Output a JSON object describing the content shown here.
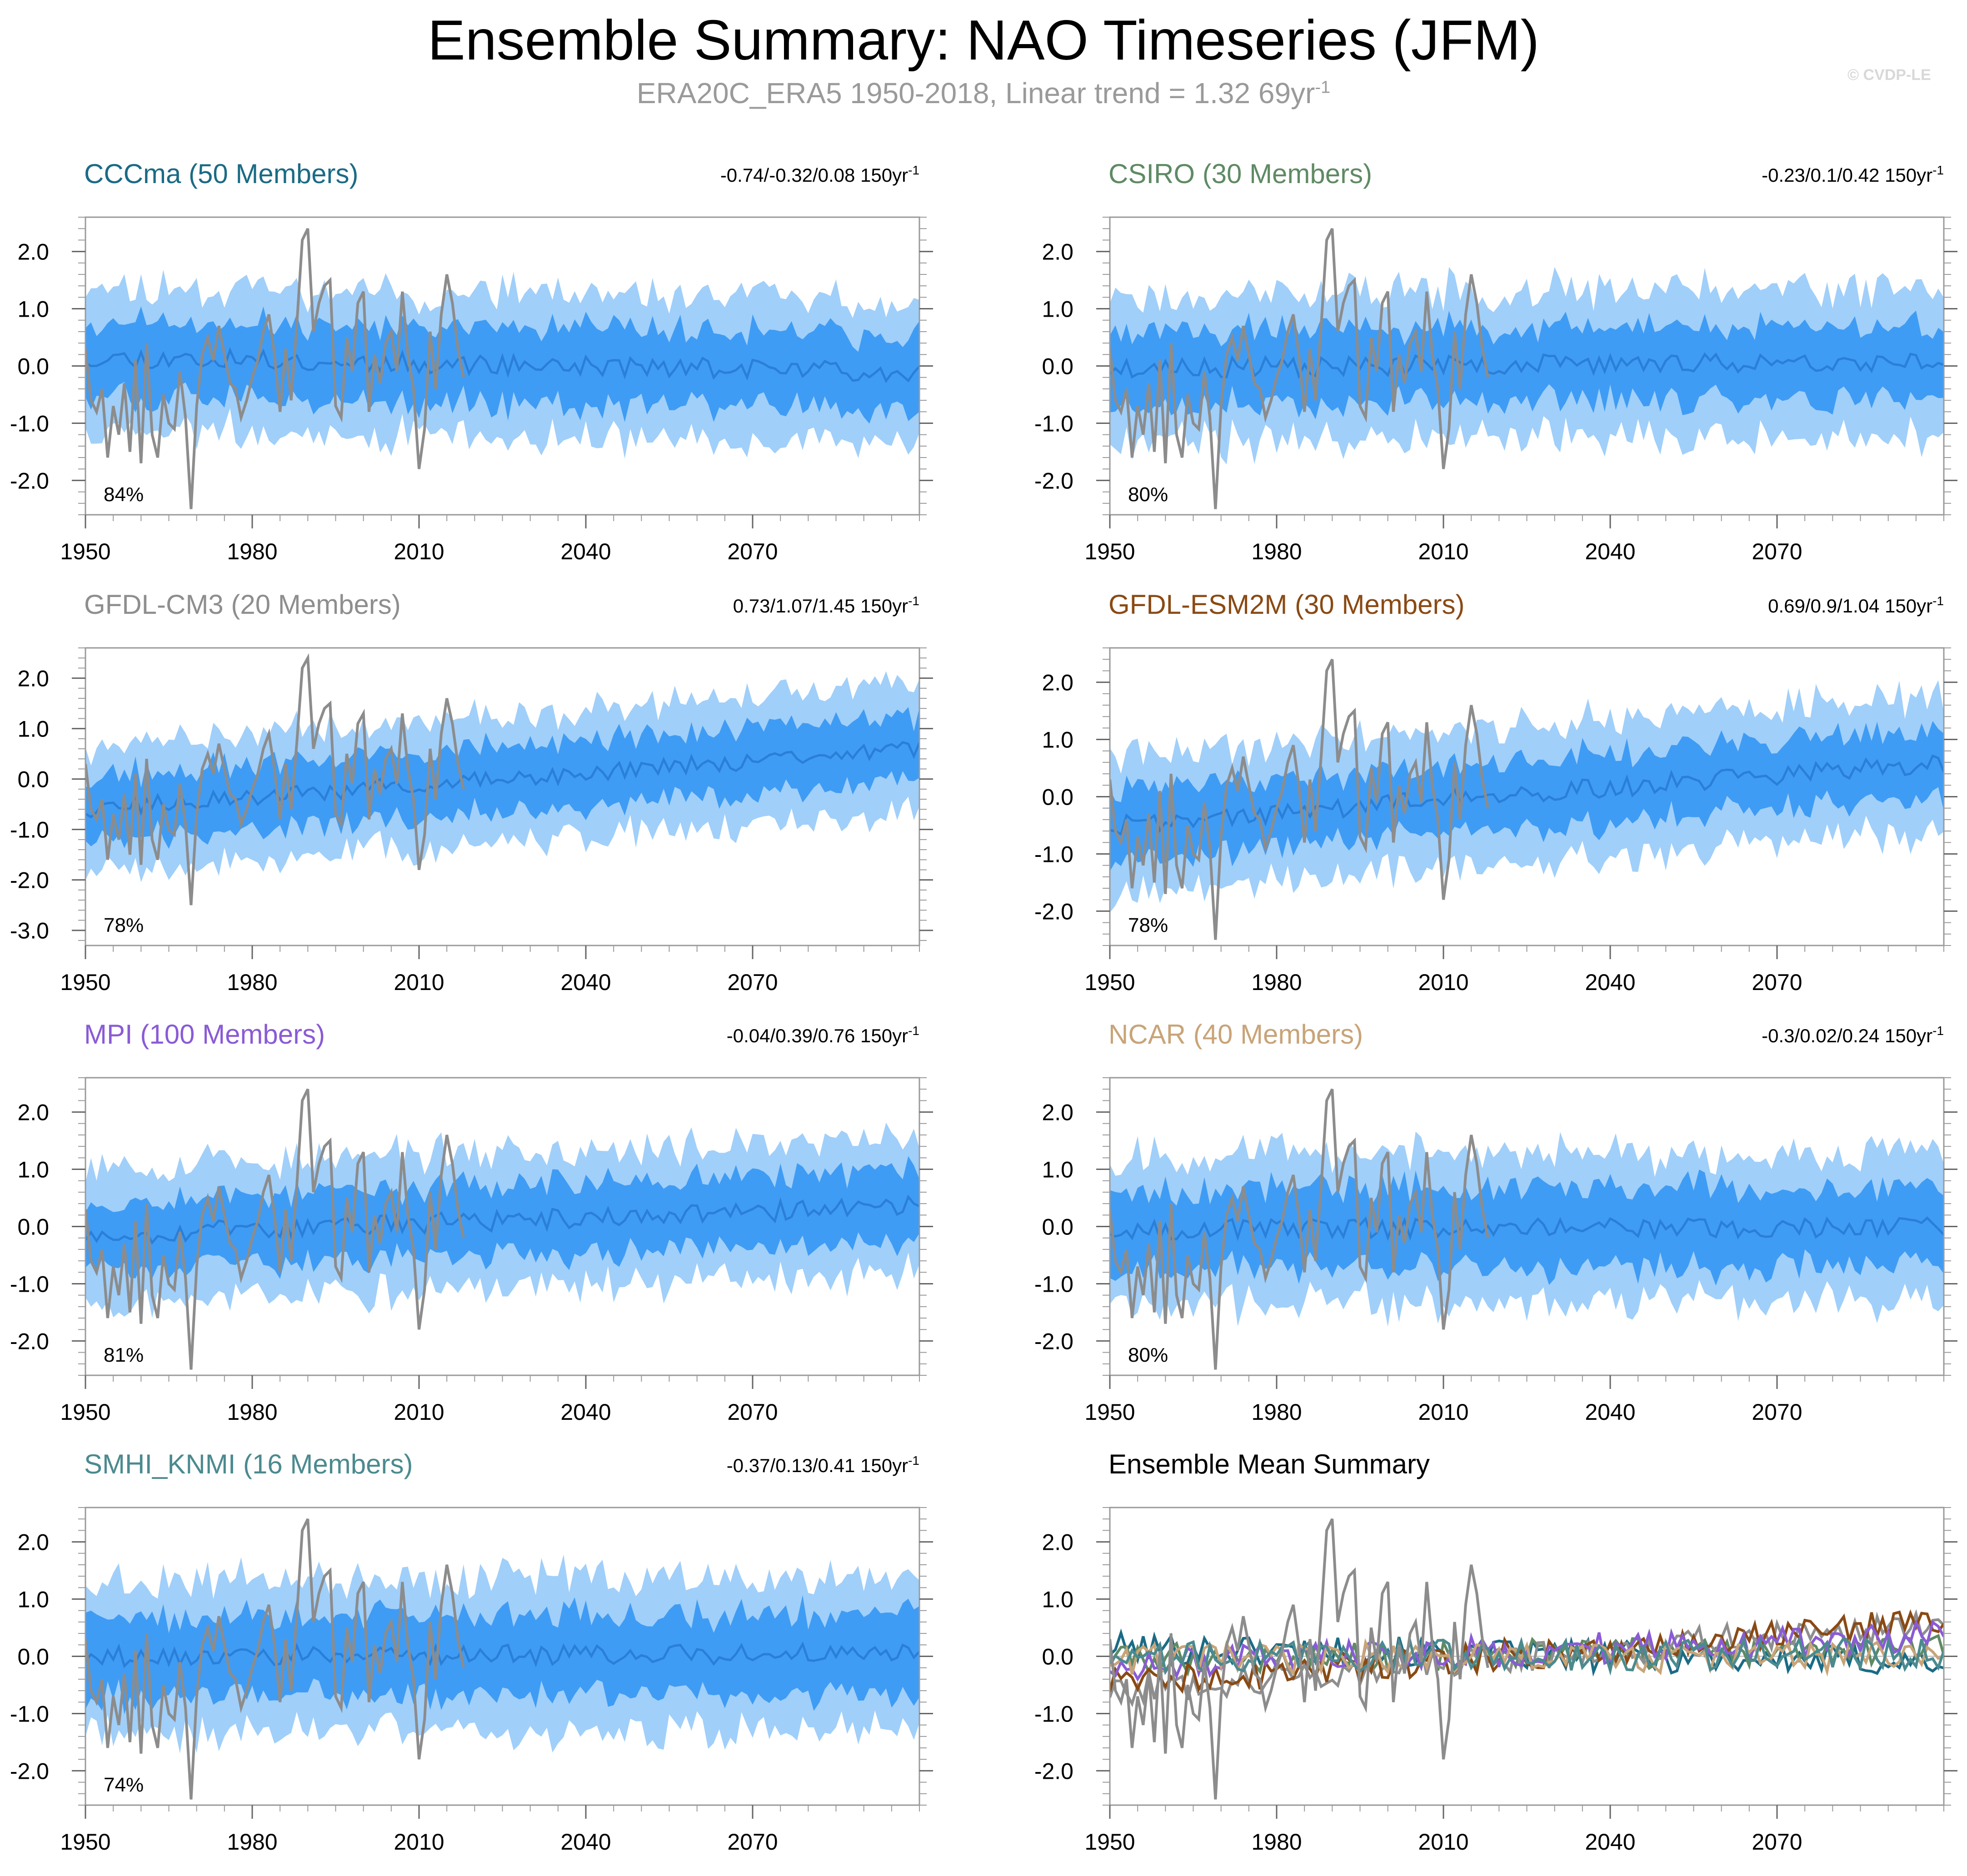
{
  "header": {
    "title": "Ensemble Summary: NAO Timeseries (JFM)",
    "subtitle": "ERA20C_ERA5 1950-2018, Linear trend = 1.32 69yr",
    "subtitle_sup": "-1",
    "credit": "© CVDP-LE"
  },
  "chart_data": [
    {
      "type": "line",
      "id": "cccma",
      "title": "CCCma (50 Members)",
      "title_color": "#1b6b85",
      "stat": "-0.74/-0.32/0.08 150yr",
      "stat_sup": "-1",
      "percent": "84%",
      "x_range": [
        1950,
        2100
      ],
      "ylim": [
        -2.6,
        2.6
      ],
      "yticks": [
        "2.0",
        "1.0",
        "0.0",
        "-1.0",
        "-2.0"
      ],
      "ytick_values": [
        2,
        1,
        0,
        -1,
        -2
      ],
      "xticks": [
        "1950",
        "1980",
        "2010",
        "2040",
        "2070"
      ],
      "xtick_values": [
        1950,
        1980,
        2010,
        2040,
        2070
      ],
      "trend_start": 0.15,
      "trend_end": -0.1,
      "spread_outer": 1.25,
      "spread_inner": 0.65,
      "seed": 11,
      "series": [
        {
          "name": "Ensemble 10-90% spread",
          "color": "#a0cffa"
        },
        {
          "name": "Ensemble 25-75% spread",
          "color": "#3f9cf4"
        },
        {
          "name": "Ensemble mean",
          "color": "#2a7fd8"
        },
        {
          "name": "ERA20C_ERA5",
          "color": "#8c8c8c"
        }
      ]
    },
    {
      "type": "line",
      "id": "csiro",
      "title": "CSIRO (30 Members)",
      "title_color": "#5f8a64",
      "stat": "-0.23/0.1/0.42 150yr",
      "stat_sup": "-1",
      "percent": "80%",
      "x_range": [
        1950,
        2100
      ],
      "ylim": [
        -2.6,
        2.6
      ],
      "yticks": [
        "2.0",
        "1.0",
        "0.0",
        "-1.0",
        "-2.0"
      ],
      "ytick_values": [
        2,
        1,
        0,
        -1,
        -2
      ],
      "xticks": [
        "1950",
        "1980",
        "2010",
        "2040",
        "2070"
      ],
      "xtick_values": [
        1950,
        1980,
        2010,
        2040,
        2070
      ],
      "trend_start": -0.05,
      "trend_end": 0.1,
      "spread_outer": 1.3,
      "spread_inner": 0.65,
      "seed": 23,
      "series": [
        {
          "name": "Ensemble 10-90% spread",
          "color": "#a0cffa"
        },
        {
          "name": "Ensemble 25-75% spread",
          "color": "#3f9cf4"
        },
        {
          "name": "Ensemble mean",
          "color": "#2a7fd8"
        },
        {
          "name": "ERA20C_ERA5",
          "color": "#8c8c8c"
        }
      ]
    },
    {
      "type": "line",
      "id": "gfdl-cm3",
      "title": "GFDL-CM3 (20 Members)",
      "title_color": "#8e8e8e",
      "stat": "0.73/1.07/1.45 150yr",
      "stat_sup": "-1",
      "percent": "78%",
      "x_range": [
        1950,
        2100
      ],
      "ylim": [
        -3.3,
        2.6
      ],
      "yticks": [
        "2.0",
        "1.0",
        "0.0",
        "-1.0",
        "-2.0",
        "-3.0"
      ],
      "ytick_values": [
        2,
        1,
        0,
        -1,
        -2,
        -3
      ],
      "xticks": [
        "1950",
        "1980",
        "2010",
        "2040",
        "2070"
      ],
      "xtick_values": [
        1950,
        1980,
        2010,
        2040,
        2070
      ],
      "trend_start": -0.6,
      "trend_end": 0.6,
      "spread_outer": 1.25,
      "spread_inner": 0.65,
      "seed": 37,
      "series": [
        {
          "name": "Ensemble 10-90% spread",
          "color": "#a0cffa"
        },
        {
          "name": "Ensemble 25-75% spread",
          "color": "#3f9cf4"
        },
        {
          "name": "Ensemble mean",
          "color": "#2a7fd8"
        },
        {
          "name": "ERA20C_ERA5",
          "color": "#8c8c8c"
        }
      ]
    },
    {
      "type": "line",
      "id": "gfdl-esm2m",
      "title": "GFDL-ESM2M (30 Members)",
      "title_color": "#8a4a14",
      "stat": "0.69/0.9/1.04 150yr",
      "stat_sup": "-1",
      "percent": "78%",
      "x_range": [
        1950,
        2100
      ],
      "ylim": [
        -2.6,
        2.6
      ],
      "yticks": [
        "2.0",
        "1.0",
        "0.0",
        "-1.0",
        "-2.0"
      ],
      "ytick_values": [
        2,
        1,
        0,
        -1,
        -2
      ],
      "xticks": [
        "1950",
        "1980",
        "2010",
        "2040",
        "2070"
      ],
      "xtick_values": [
        1950,
        1980,
        2010,
        2040,
        2070
      ],
      "trend_start": -0.5,
      "trend_end": 0.6,
      "spread_outer": 1.2,
      "spread_inner": 0.6,
      "seed": 41,
      "series": [
        {
          "name": "Ensemble 10-90% spread",
          "color": "#a0cffa"
        },
        {
          "name": "Ensemble 25-75% spread",
          "color": "#3f9cf4"
        },
        {
          "name": "Ensemble mean",
          "color": "#2a7fd8"
        },
        {
          "name": "ERA20C_ERA5",
          "color": "#8c8c8c"
        }
      ]
    },
    {
      "type": "line",
      "id": "mpi",
      "title": "MPI (100 Members)",
      "title_color": "#8a5bd6",
      "stat": "-0.04/0.39/0.76 150yr",
      "stat_sup": "-1",
      "percent": "81%",
      "x_range": [
        1950,
        2100
      ],
      "ylim": [
        -2.6,
        2.6
      ],
      "yticks": [
        "2.0",
        "1.0",
        "0.0",
        "-1.0",
        "-2.0"
      ],
      "ytick_values": [
        2,
        1,
        0,
        -1,
        -2
      ],
      "xticks": [
        "1950",
        "1980",
        "2010",
        "2040",
        "2070"
      ],
      "xtick_values": [
        1950,
        1980,
        2010,
        2040,
        2070
      ],
      "trend_start": -0.15,
      "trend_end": 0.35,
      "spread_outer": 1.2,
      "spread_inner": 0.6,
      "seed": 53,
      "series": [
        {
          "name": "Ensemble 10-90% spread",
          "color": "#a0cffa"
        },
        {
          "name": "Ensemble 25-75% spread",
          "color": "#3f9cf4"
        },
        {
          "name": "Ensemble mean",
          "color": "#2a7fd8"
        },
        {
          "name": "ERA20C_ERA5",
          "color": "#8c8c8c"
        }
      ]
    },
    {
      "type": "line",
      "id": "ncar",
      "title": "NCAR (40 Members)",
      "title_color": "#c8a478",
      "stat": "-0.3/0.02/0.24 150yr",
      "stat_sup": "-1",
      "percent": "80%",
      "x_range": [
        1950,
        2100
      ],
      "ylim": [
        -2.6,
        2.6
      ],
      "yticks": [
        "2.0",
        "1.0",
        "0.0",
        "-1.0",
        "-2.0"
      ],
      "ytick_values": [
        2,
        1,
        0,
        -1,
        -2
      ],
      "xticks": [
        "1950",
        "1980",
        "2010",
        "2040",
        "2070"
      ],
      "xtick_values": [
        1950,
        1980,
        2010,
        2040,
        2070
      ],
      "trend_start": -0.05,
      "trend_end": 0.0,
      "spread_outer": 1.3,
      "spread_inner": 0.7,
      "seed": 67,
      "series": [
        {
          "name": "Ensemble 10-90% spread",
          "color": "#a0cffa"
        },
        {
          "name": "Ensemble 25-75% spread",
          "color": "#3f9cf4"
        },
        {
          "name": "Ensemble mean",
          "color": "#2a7fd8"
        },
        {
          "name": "ERA20C_ERA5",
          "color": "#8c8c8c"
        }
      ]
    },
    {
      "type": "line",
      "id": "smhi-knmi",
      "title": "SMHI_KNMI (16 Members)",
      "title_color": "#4b8a8f",
      "stat": "-0.37/0.13/0.41 150yr",
      "stat_sup": "-1",
      "percent": "74%",
      "x_range": [
        1950,
        2100
      ],
      "ylim": [
        -2.6,
        2.6
      ],
      "yticks": [
        "2.0",
        "1.0",
        "0.0",
        "-1.0",
        "-2.0"
      ],
      "ytick_values": [
        2,
        1,
        0,
        -1,
        -2
      ],
      "xticks": [
        "1950",
        "1980",
        "2010",
        "2040",
        "2070"
      ],
      "xtick_values": [
        1950,
        1980,
        2010,
        2040,
        2070
      ],
      "trend_start": 0.0,
      "trend_end": 0.05,
      "spread_outer": 1.35,
      "spread_inner": 0.7,
      "seed": 79,
      "series": [
        {
          "name": "Ensemble 10-90% spread",
          "color": "#a0cffa"
        },
        {
          "name": "Ensemble 25-75% spread",
          "color": "#3f9cf4"
        },
        {
          "name": "Ensemble mean",
          "color": "#2a7fd8"
        },
        {
          "name": "ERA20C_ERA5",
          "color": "#8c8c8c"
        }
      ]
    },
    {
      "type": "line",
      "id": "summary",
      "title": "Ensemble Mean Summary",
      "title_color": "#000000",
      "stat": "",
      "stat_sup": "",
      "percent": "",
      "x_range": [
        1950,
        2100
      ],
      "ylim": [
        -2.6,
        2.6
      ],
      "yticks": [
        "2.0",
        "1.0",
        "0.0",
        "-1.0",
        "-2.0"
      ],
      "ytick_values": [
        2,
        1,
        0,
        -1,
        -2
      ],
      "xticks": [
        "1950",
        "1980",
        "2010",
        "2040",
        "2070"
      ],
      "xtick_values": [
        1950,
        1980,
        2010,
        2040,
        2070
      ],
      "series": [
        {
          "name": "ERA20C_ERA5",
          "color": "#8c8c8c"
        },
        {
          "name": "CCCma",
          "color": "#1b6b85",
          "trend_start": 0.15,
          "trend_end": -0.1
        },
        {
          "name": "CSIRO",
          "color": "#5f8a64",
          "trend_start": -0.05,
          "trend_end": 0.1
        },
        {
          "name": "GFDL-CM3",
          "color": "#8e8e8e",
          "trend_start": -0.6,
          "trend_end": 0.6
        },
        {
          "name": "GFDL-ESM2M",
          "color": "#8a4a14",
          "trend_start": -0.5,
          "trend_end": 0.6
        },
        {
          "name": "MPI",
          "color": "#8a5bd6",
          "trend_start": -0.15,
          "trend_end": 0.35
        },
        {
          "name": "NCAR",
          "color": "#c8a478",
          "trend_start": -0.05,
          "trend_end": 0.0
        },
        {
          "name": "SMHI_KNMI",
          "color": "#4b8a8f",
          "trend_start": 0.0,
          "trend_end": 0.05
        }
      ]
    }
  ],
  "observations": {
    "name": "ERA20C_ERA5",
    "years": [
      1950,
      1951,
      1952,
      1953,
      1954,
      1955,
      1956,
      1957,
      1958,
      1959,
      1960,
      1961,
      1962,
      1963,
      1964,
      1965,
      1966,
      1967,
      1968,
      1969,
      1970,
      1971,
      1972,
      1973,
      1974,
      1975,
      1976,
      1977,
      1978,
      1979,
      1980,
      1981,
      1982,
      1983,
      1984,
      1985,
      1986,
      1987,
      1988,
      1989,
      1990,
      1991,
      1992,
      1993,
      1994,
      1995,
      1996,
      1997,
      1998,
      1999,
      2000,
      2001,
      2002,
      2003,
      2004,
      2005,
      2006,
      2007,
      2008,
      2009,
      2010,
      2011,
      2012,
      2013,
      2014,
      2015,
      2016,
      2017,
      2018
    ],
    "values": [
      0.3,
      -0.6,
      -0.8,
      -0.4,
      -1.6,
      -0.7,
      -1.2,
      -0.3,
      -1.5,
      0.1,
      -1.7,
      0.4,
      -1.2,
      -1.6,
      -0.5,
      -1.0,
      -1.1,
      -0.1,
      -0.9,
      -2.5,
      -0.7,
      0.2,
      0.5,
      0.1,
      0.7,
      0.2,
      -0.3,
      -0.4,
      -0.9,
      -0.6,
      -0.2,
      0.1,
      0.6,
      0.9,
      0.2,
      -0.8,
      0.3,
      -0.6,
      0.7,
      2.2,
      2.4,
      0.6,
      1.1,
      1.4,
      1.5,
      -0.7,
      -0.9,
      0.5,
      -0.1,
      1.1,
      1.3,
      -0.8,
      0.2,
      -0.3,
      0.4,
      0.6,
      -0.1,
      1.3,
      0.2,
      -0.4,
      -1.8,
      -1.1,
      0.6,
      -0.4,
      0.9,
      1.6,
      1.1,
      0.3,
      -0.2
    ]
  }
}
